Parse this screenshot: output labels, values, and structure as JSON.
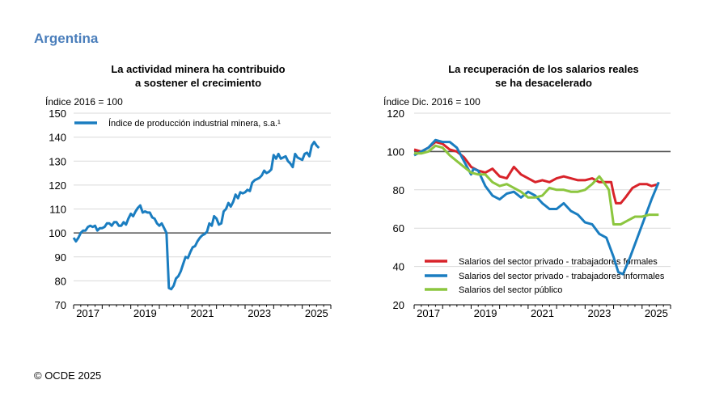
{
  "header": {
    "title": "Argentina",
    "color": "#4a7ebb"
  },
  "footer": {
    "copyright": "© OCDE 2025"
  },
  "chart_data": [
    {
      "type": "line",
      "title": "La actividad minera ha contribuido\na sostener el crecimiento",
      "title_lines": [
        "La actividad minera ha contribuido",
        "a sostener el crecimiento"
      ],
      "ylabel": "Índice 2016 = 100",
      "ylim": [
        70,
        150
      ],
      "yticks": [
        70,
        80,
        90,
        100,
        110,
        120,
        130,
        140,
        150
      ],
      "xticklabels": [
        "2017",
        "2019",
        "2021",
        "2023",
        "2025"
      ],
      "grid": true,
      "reference_line": 100,
      "legend": "top-left",
      "series": [
        {
          "name": "Índice de producción industrial minera, s.a.¹",
          "color": "#1a7dc0",
          "start": "2017-01",
          "values": [
            98,
            96.5,
            98,
            100,
            101,
            101,
            102.5,
            103,
            102.5,
            103,
            101,
            102,
            102,
            102.5,
            104,
            104,
            103,
            104.5,
            104.5,
            103,
            103,
            104.5,
            103.5,
            106,
            108,
            107,
            109,
            110.5,
            111.5,
            108.5,
            109,
            108.5,
            108.5,
            106.5,
            106,
            104,
            103,
            104,
            102,
            100,
            77,
            76.5,
            78,
            81,
            82,
            84,
            87,
            90,
            89.5,
            92,
            94,
            94.5,
            96.5,
            98,
            99,
            99.5,
            100.5,
            104,
            103,
            107,
            106,
            103.5,
            104,
            109,
            110,
            112.5,
            111,
            113,
            116,
            114.5,
            117,
            116.5,
            117,
            118,
            117.5,
            121,
            122,
            122.5,
            123,
            124,
            126,
            125,
            125.5,
            126.5,
            132.5,
            131,
            133,
            131,
            131.5,
            132,
            130,
            129,
            127.5,
            133,
            131.5,
            131,
            130.5,
            133,
            133.5,
            132,
            136.5,
            138,
            136.5,
            135.5
          ]
        }
      ]
    },
    {
      "type": "line",
      "title_lines": [
        "La recuperación de los salarios reales",
        "se ha desacelerado"
      ],
      "ylabel": "Índice Dic. 2016 = 100",
      "ylim": [
        20,
        120
      ],
      "yticks": [
        20,
        40,
        60,
        80,
        100,
        120
      ],
      "xticklabels": [
        "2017",
        "2019",
        "2021",
        "2023",
        "2025"
      ],
      "grid": true,
      "reference_line": 100,
      "legend": "bottom-left",
      "series": [
        {
          "name": "Salarios del sector privado - trabajadores formales",
          "color": "#d8232a",
          "points": [
            [
              "2016-12",
              101
            ],
            [
              "2017-03",
              100
            ],
            [
              "2017-06",
              102
            ],
            [
              "2017-09",
              105
            ],
            [
              "2017-12",
              104
            ],
            [
              "2018-03",
              101
            ],
            [
              "2018-06",
              100
            ],
            [
              "2018-09",
              97
            ],
            [
              "2018-12",
              92
            ],
            [
              "2019-03",
              90
            ],
            [
              "2019-06",
              89
            ],
            [
              "2019-09",
              91
            ],
            [
              "2019-12",
              87
            ],
            [
              "2020-03",
              86
            ],
            [
              "2020-06",
              92
            ],
            [
              "2020-09",
              88
            ],
            [
              "2020-12",
              86
            ],
            [
              "2021-03",
              84
            ],
            [
              "2021-06",
              85
            ],
            [
              "2021-09",
              84
            ],
            [
              "2021-12",
              86
            ],
            [
              "2022-03",
              87
            ],
            [
              "2022-06",
              86
            ],
            [
              "2022-09",
              85
            ],
            [
              "2022-12",
              85
            ],
            [
              "2023-03",
              86
            ],
            [
              "2023-06",
              84
            ],
            [
              "2023-09",
              84
            ],
            [
              "2023-11",
              84
            ],
            [
              "2023-12",
              78
            ],
            [
              "2024-01",
              73
            ],
            [
              "2024-03",
              73
            ],
            [
              "2024-05",
              76
            ],
            [
              "2024-08",
              81
            ],
            [
              "2024-11",
              83
            ],
            [
              "2025-02",
              83
            ],
            [
              "2025-04",
              82
            ],
            [
              "2025-07",
              83
            ]
          ]
        },
        {
          "name": "Salarios del sector privado - trabajadores informales",
          "color": "#1a7dc0",
          "points": [
            [
              "2016-12",
              98
            ],
            [
              "2017-03",
              100
            ],
            [
              "2017-06",
              102
            ],
            [
              "2017-09",
              106
            ],
            [
              "2017-12",
              105
            ],
            [
              "2018-03",
              105
            ],
            [
              "2018-06",
              102
            ],
            [
              "2018-09",
              95
            ],
            [
              "2018-12",
              88
            ],
            [
              "2019-01",
              91
            ],
            [
              "2019-03",
              90
            ],
            [
              "2019-06",
              82
            ],
            [
              "2019-09",
              77
            ],
            [
              "2019-12",
              75
            ],
            [
              "2020-03",
              78
            ],
            [
              "2020-06",
              79
            ],
            [
              "2020-09",
              76
            ],
            [
              "2020-12",
              79
            ],
            [
              "2021-03",
              77
            ],
            [
              "2021-06",
              73
            ],
            [
              "2021-09",
              70
            ],
            [
              "2021-12",
              70
            ],
            [
              "2022-03",
              73
            ],
            [
              "2022-06",
              69
            ],
            [
              "2022-09",
              67
            ],
            [
              "2022-12",
              63
            ],
            [
              "2023-03",
              62
            ],
            [
              "2023-06",
              57
            ],
            [
              "2023-09",
              55
            ],
            [
              "2023-12",
              45
            ],
            [
              "2024-02",
              37
            ],
            [
              "2024-04",
              36
            ],
            [
              "2024-07",
              45
            ],
            [
              "2024-10",
              55
            ],
            [
              "2025-01",
              65
            ],
            [
              "2025-04",
              75
            ],
            [
              "2025-07",
              84
            ]
          ]
        },
        {
          "name": "Salarios del sector público",
          "color": "#8cc63f",
          "points": [
            [
              "2016-12",
              99
            ],
            [
              "2017-03",
              99
            ],
            [
              "2017-06",
              100
            ],
            [
              "2017-09",
              103
            ],
            [
              "2017-12",
              102
            ],
            [
              "2018-03",
              98
            ],
            [
              "2018-06",
              95
            ],
            [
              "2018-09",
              92
            ],
            [
              "2018-12",
              89
            ],
            [
              "2019-03",
              88
            ],
            [
              "2019-06",
              88
            ],
            [
              "2019-09",
              84
            ],
            [
              "2019-12",
              82
            ],
            [
              "2020-03",
              83
            ],
            [
              "2020-06",
              81
            ],
            [
              "2020-09",
              79
            ],
            [
              "2020-12",
              76
            ],
            [
              "2021-03",
              76
            ],
            [
              "2021-06",
              77
            ],
            [
              "2021-09",
              81
            ],
            [
              "2021-12",
              80
            ],
            [
              "2022-03",
              80
            ],
            [
              "2022-06",
              79
            ],
            [
              "2022-09",
              79
            ],
            [
              "2022-12",
              80
            ],
            [
              "2023-03",
              83
            ],
            [
              "2023-06",
              87
            ],
            [
              "2023-09",
              82
            ],
            [
              "2023-10",
              80
            ],
            [
              "2023-12",
              62
            ],
            [
              "2024-03",
              62
            ],
            [
              "2024-06",
              64
            ],
            [
              "2024-09",
              66
            ],
            [
              "2024-12",
              66
            ],
            [
              "2025-03",
              67
            ],
            [
              "2025-07",
              67
            ]
          ]
        }
      ]
    }
  ]
}
